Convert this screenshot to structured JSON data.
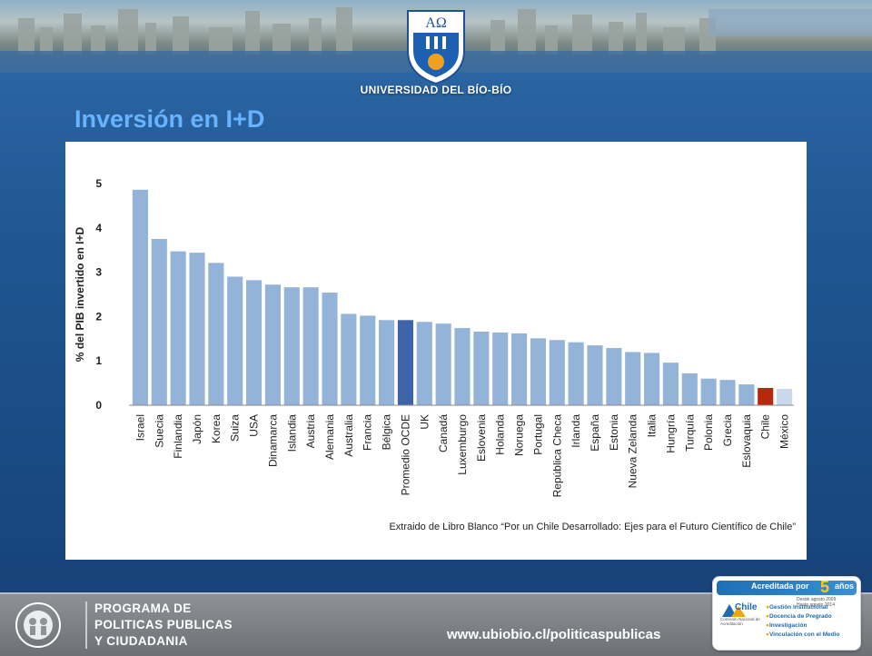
{
  "header": {
    "university_name": "UNIVERSIDAD DEL BÍO-BÍO",
    "logo_monogram": "AΩ"
  },
  "slide": {
    "title": "Inversión en I+D"
  },
  "chart_data": {
    "type": "bar",
    "ylabel": "% del PIB invertido en I+D",
    "xlabel": "",
    "ylim": [
      0,
      5
    ],
    "yticks": [
      0,
      1,
      2,
      3,
      4,
      5
    ],
    "grid": false,
    "categories": [
      "Israel",
      "Suecia",
      "Finlandia",
      "Japón",
      "Korea",
      "Suiza",
      "USA",
      "Dinamarca",
      "Islandia",
      "Austria",
      "Alemania",
      "Australia",
      "Francia",
      "Bélgica",
      "Promedio OCDE",
      "UK",
      "Canadá",
      "Luxemburgo",
      "Eslovenia",
      "Holanda",
      "Noruega",
      "Portugal",
      "República Checa",
      "Irlanda",
      "España",
      "Estonia",
      "Nueva Zelanda",
      "Italia",
      "Hungría",
      "Turquía",
      "Polonia",
      "Grecia",
      "Eslovaquia",
      "Chile",
      "México"
    ],
    "values": [
      4.86,
      3.75,
      3.47,
      3.44,
      3.21,
      2.9,
      2.82,
      2.72,
      2.66,
      2.66,
      2.54,
      2.06,
      2.02,
      1.92,
      1.92,
      1.88,
      1.84,
      1.74,
      1.66,
      1.64,
      1.62,
      1.51,
      1.47,
      1.42,
      1.35,
      1.29,
      1.2,
      1.18,
      0.96,
      0.72,
      0.6,
      0.57,
      0.47,
      0.39,
      0.37
    ],
    "colors": {
      "default": "#93b3d9",
      "highlight_oecd": "#3d64a8",
      "highlight_chile": "#b8280f",
      "highlight_mexico": "#c9d8ec"
    },
    "highlights": {
      "Promedio OCDE": "highlight_oecd",
      "Chile": "highlight_chile",
      "México": "highlight_mexico"
    },
    "source_note": "Extraido de Libro Blanco “Por un Chile Desarrollado: Ejes para el Futuro Científico de Chile”"
  },
  "footer": {
    "program_lines": [
      "PROGRAMA DE",
      "POLITICAS PUBLICAS",
      "Y CIUDADANIA"
    ],
    "url": "www.ubiobio.cl/politicaspublicas",
    "accreditation": {
      "title": "Acreditada por",
      "years": "5",
      "years_unit": "años",
      "dates": [
        "Desde agosto 2009",
        "Hasta agosto 2014"
      ],
      "brand": "Chile",
      "brand_sub": "Comisión Nacional de Acreditación",
      "items": [
        "Gestión Institucional",
        "Docencia de Pregrado",
        "Investigación",
        "Vinculación con el Medio"
      ]
    }
  }
}
